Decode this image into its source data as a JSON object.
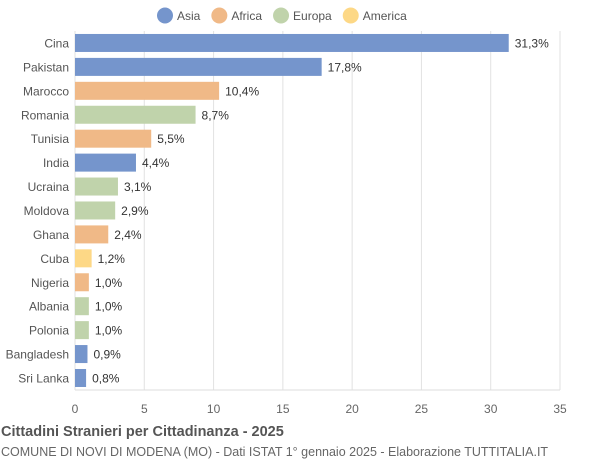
{
  "chart_data": {
    "type": "bar",
    "orientation": "horizontal",
    "title": "Cittadini Stranieri per Cittadinanza - 2025",
    "subtitle": "COMUNE DI NOVI DI MODENA (MO) - Dati ISTAT 1° gennaio 2025 - Elaborazione TUTTITALIA.IT",
    "legend": {
      "placement": "top",
      "entries": [
        {
          "name": "Asia",
          "color": "#7595cc"
        },
        {
          "name": "Africa",
          "color": "#f0b987"
        },
        {
          "name": "Europa",
          "color": "#c0d3ab"
        },
        {
          "name": "America",
          "color": "#fdd886"
        }
      ]
    },
    "categories": [
      "Cina",
      "Pakistan",
      "Marocco",
      "Romania",
      "Tunisia",
      "India",
      "Ucraina",
      "Moldova",
      "Ghana",
      "Cuba",
      "Nigeria",
      "Albania",
      "Polonia",
      "Bangladesh",
      "Sri Lanka"
    ],
    "values": [
      31.3,
      17.8,
      10.4,
      8.7,
      5.5,
      4.4,
      3.1,
      2.9,
      2.4,
      1.2,
      1.0,
      1.0,
      1.0,
      0.9,
      0.8
    ],
    "labels": [
      "31,3%",
      "17,8%",
      "10,4%",
      "8,7%",
      "5,5%",
      "4,4%",
      "3,1%",
      "2,9%",
      "2,4%",
      "1,2%",
      "1,0%",
      "1,0%",
      "1,0%",
      "0,9%",
      "0,8%"
    ],
    "groups": [
      "Asia",
      "Asia",
      "Africa",
      "Europa",
      "Africa",
      "Asia",
      "Europa",
      "Europa",
      "Africa",
      "America",
      "Africa",
      "Europa",
      "Europa",
      "Asia",
      "Asia"
    ],
    "xlim": [
      0,
      35
    ],
    "xticks": [
      0,
      5,
      10,
      15,
      20,
      25,
      30,
      35
    ],
    "grid": true
  }
}
